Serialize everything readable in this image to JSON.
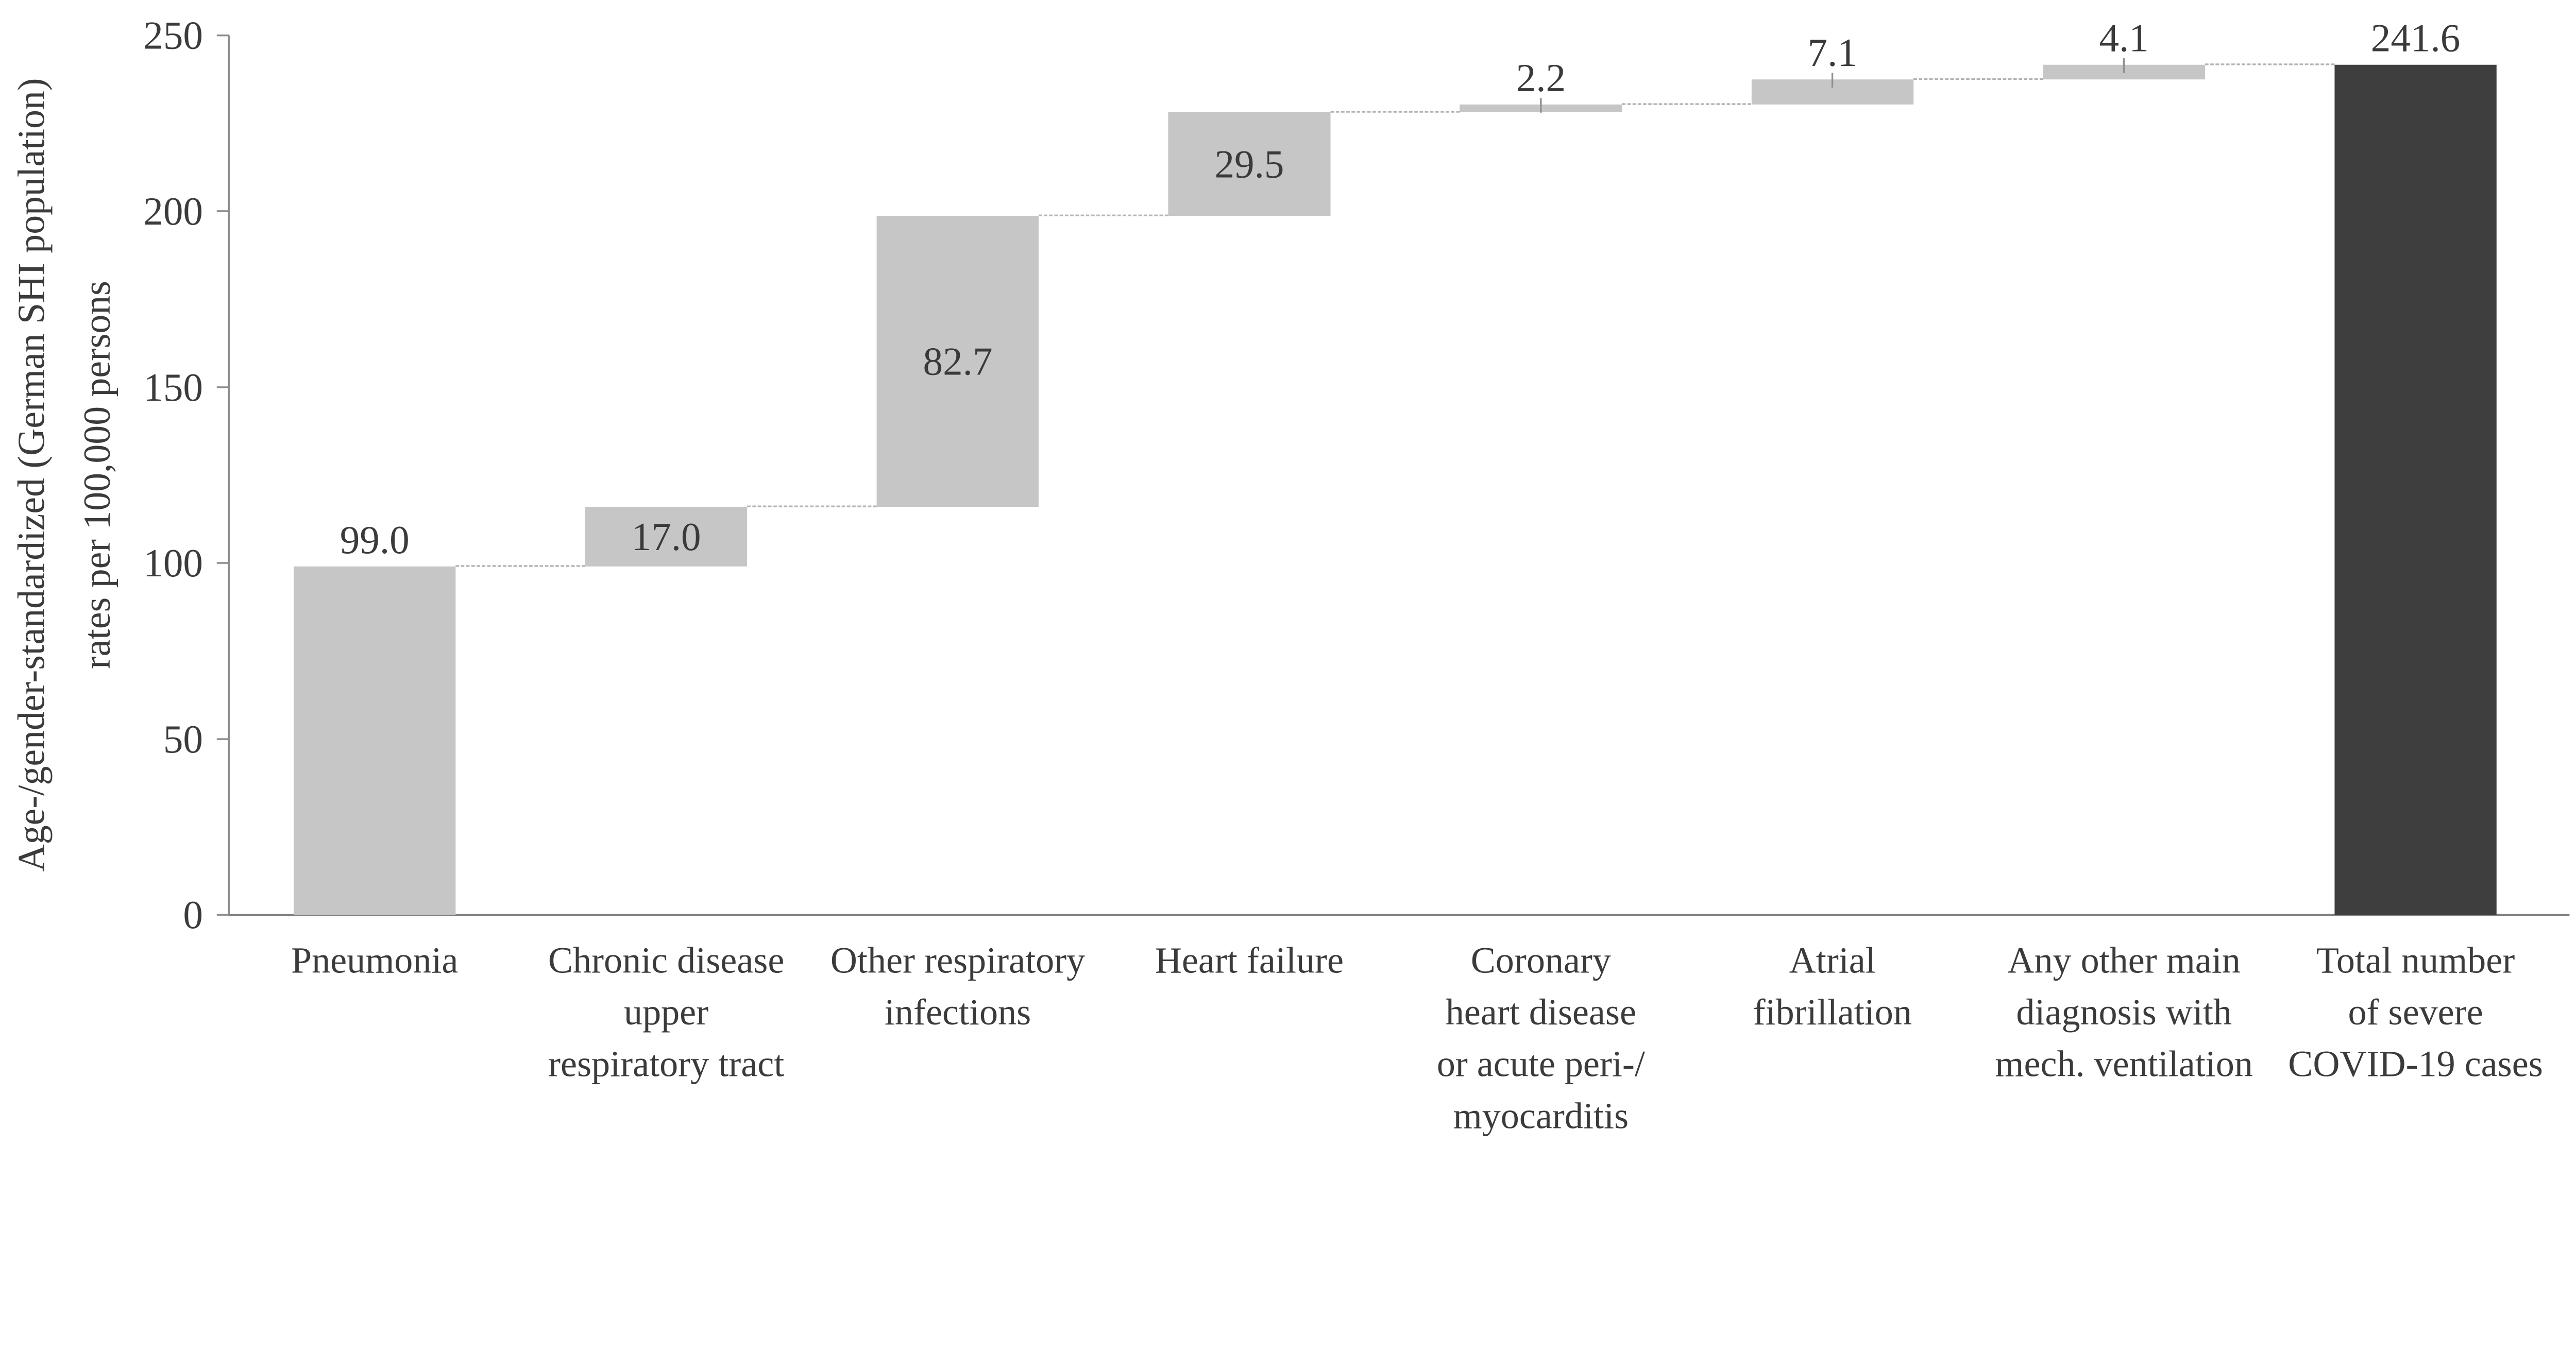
{
  "chart_data": {
    "type": "bar",
    "subtype": "waterfall",
    "title": "",
    "ylabel_line1": "Age-/gender-standardized (German SHI population)",
    "ylabel_line2": "rates per 100,000 persons",
    "xlabel": "",
    "ylim": [
      0,
      250
    ],
    "yticks": [
      "0",
      "50",
      "100",
      "150",
      "200",
      "250"
    ],
    "ytick_values": [
      0,
      50,
      100,
      150,
      200,
      250
    ],
    "grid": false,
    "legend": false,
    "connector_style": "dotted",
    "categories": [
      "Pneumonia",
      "Chronic disease upper respiratory tract",
      "Other respiratory infections",
      "Heart failure",
      "Coronary heart disease or acute peri-/ myocarditis",
      "Atrial fibrillation",
      "Any other main diagnosis with mech. ventilation",
      "Total number of severe COVID-19 cases"
    ],
    "bars": [
      {
        "category_lines": [
          "Pneumonia"
        ],
        "value": 99.0,
        "label": "99.0",
        "base": 0,
        "top": 99.0,
        "fill": "light",
        "label_position": "above",
        "leader": false
      },
      {
        "category_lines": [
          "Chronic disease",
          "upper",
          "respiratory tract"
        ],
        "value": 17.0,
        "label": "17.0",
        "base": 99.0,
        "top": 116.0,
        "fill": "light",
        "label_position": "inside",
        "leader": false
      },
      {
        "category_lines": [
          "Other respiratory",
          "infections"
        ],
        "value": 82.7,
        "label": "82.7",
        "base": 116.0,
        "top": 198.7,
        "fill": "light",
        "label_position": "inside",
        "leader": false
      },
      {
        "category_lines": [
          "Heart failure"
        ],
        "value": 29.5,
        "label": "29.5",
        "base": 198.7,
        "top": 228.2,
        "fill": "light",
        "label_position": "inside",
        "leader": false
      },
      {
        "category_lines": [
          "Coronary",
          "heart disease",
          "or acute peri-/",
          "myocarditis"
        ],
        "value": 2.2,
        "label": "2.2",
        "base": 228.2,
        "top": 230.4,
        "fill": "light",
        "label_position": "above",
        "leader": true
      },
      {
        "category_lines": [
          "Atrial",
          "fibrillation"
        ],
        "value": 7.1,
        "label": "7.1",
        "base": 230.4,
        "top": 237.5,
        "fill": "light",
        "label_position": "above",
        "leader": true
      },
      {
        "category_lines": [
          "Any other main",
          "diagnosis with",
          "mech. ventilation"
        ],
        "value": 4.1,
        "label": "4.1",
        "base": 237.5,
        "top": 241.6,
        "fill": "light",
        "label_position": "above",
        "leader": true
      },
      {
        "category_lines": [
          "Total number",
          "of severe",
          "COVID-19 cases"
        ],
        "value": 241.6,
        "label": "241.6",
        "base": 0,
        "top": 241.6,
        "fill": "dark",
        "label_position": "above",
        "leader": false
      }
    ],
    "colors": {
      "bar_light": "#c6c6c6",
      "bar_dark": "#3e3e3e",
      "axis": "#8a8a8a",
      "connector": "#b3b3b3",
      "text": "#3b3b3b"
    }
  }
}
